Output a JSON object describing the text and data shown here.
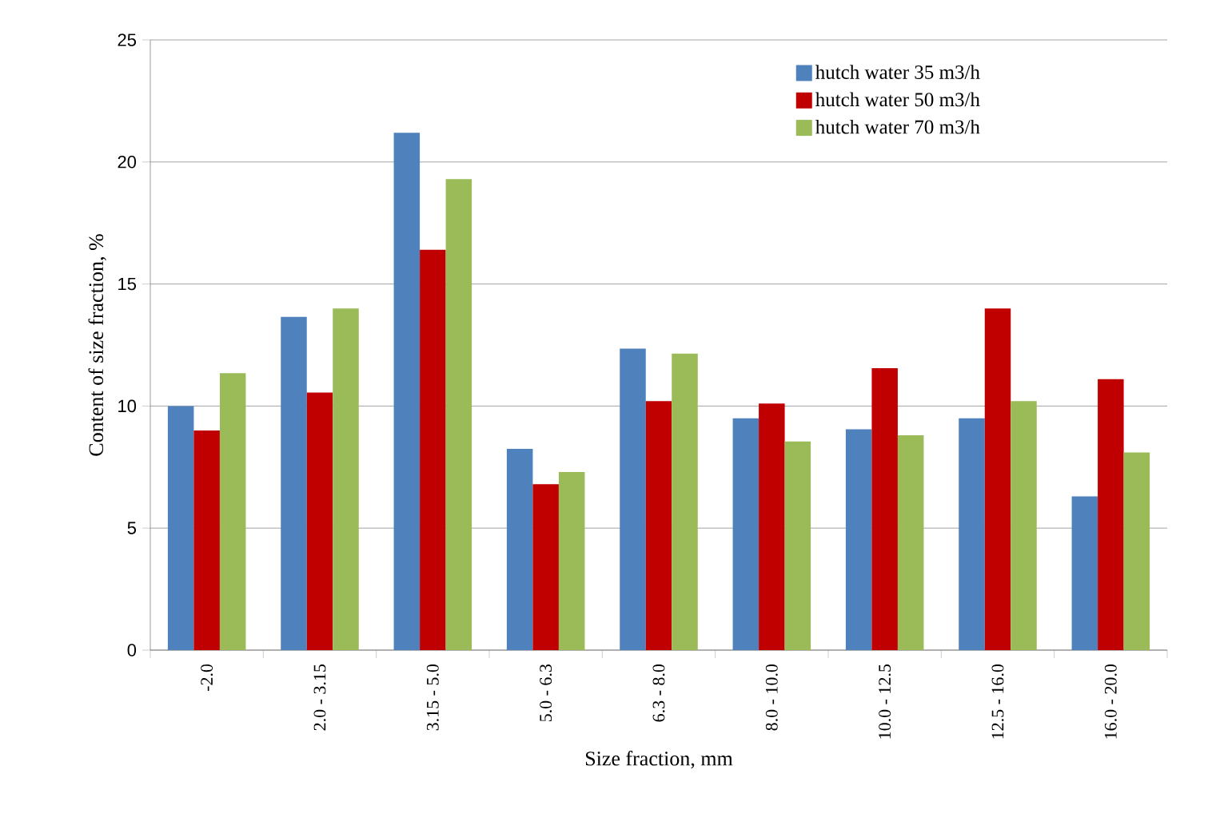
{
  "chart_data": {
    "type": "bar",
    "xlabel": "Size fraction, mm",
    "ylabel": "Content of size fraction, %",
    "categories": [
      "-2.0",
      "2.0 - 3.15",
      "3.15 - 5.0",
      "5.0 - 6.3",
      "6.3 - 8.0",
      "8.0 - 10.0",
      "10.0 - 12.5",
      "12.5 - 16.0",
      "16.0 - 20.0"
    ],
    "series": [
      {
        "name": "hutch water 35 m3/h",
        "color": "#4f81bd",
        "values": [
          10.0,
          13.65,
          21.2,
          8.25,
          12.35,
          9.5,
          9.05,
          9.5,
          6.3
        ]
      },
      {
        "name": "hutch water 50 m3/h",
        "color": "#c00000",
        "values": [
          9.0,
          10.55,
          16.4,
          6.8,
          10.2,
          10.1,
          11.55,
          14.0,
          11.1
        ]
      },
      {
        "name": "hutch water 70 m3/h",
        "color": "#9bbb59",
        "values": [
          11.35,
          14.0,
          19.3,
          7.3,
          12.15,
          8.55,
          8.8,
          10.2,
          8.1
        ]
      }
    ],
    "ylim": [
      0,
      25
    ],
    "yticks": [
      0,
      5,
      10,
      15,
      20,
      25
    ],
    "grid": "y",
    "legend": "top right"
  }
}
